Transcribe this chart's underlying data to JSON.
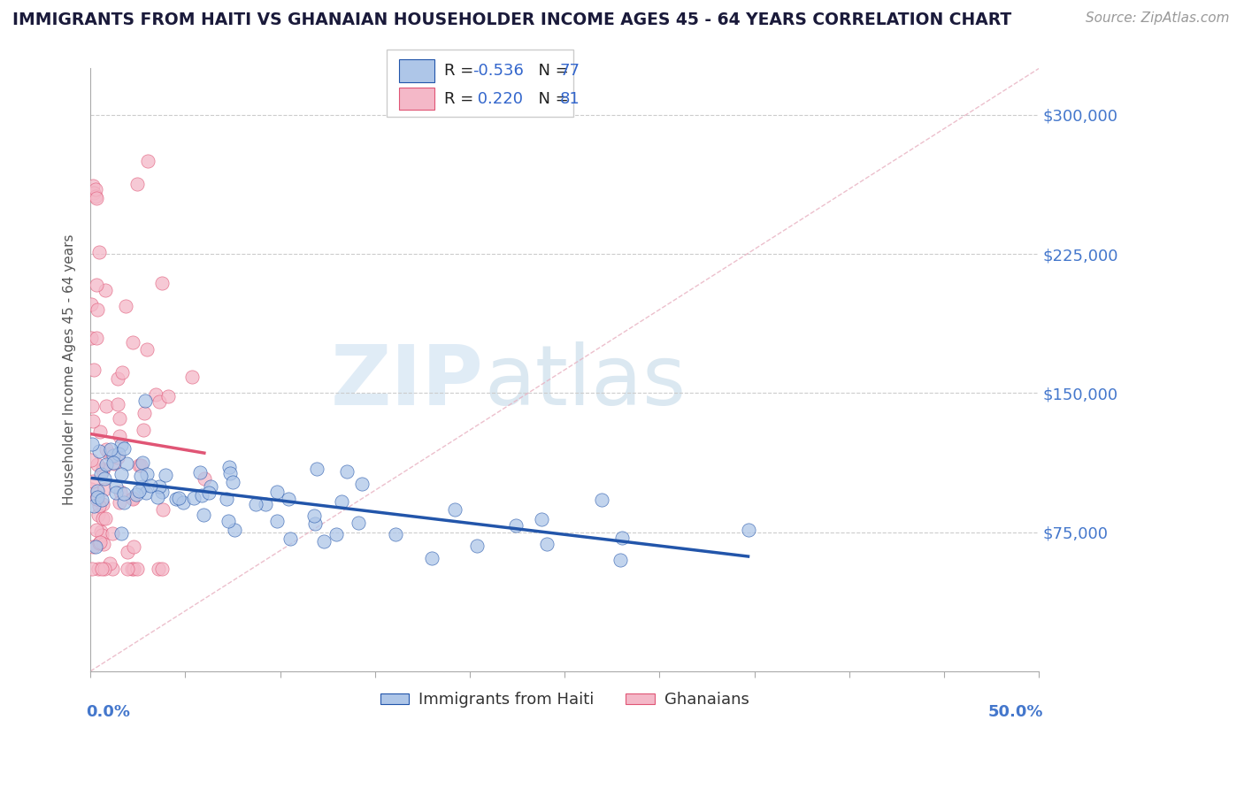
{
  "title": "IMMIGRANTS FROM HAITI VS GHANAIAN HOUSEHOLDER INCOME AGES 45 - 64 YEARS CORRELATION CHART",
  "source": "Source: ZipAtlas.com",
  "ylabel": "Householder Income Ages 45 - 64 years",
  "xlim": [
    0.0,
    50.0
  ],
  "ylim": [
    0,
    325000
  ],
  "yticks": [
    0,
    75000,
    150000,
    225000,
    300000
  ],
  "ytick_labels": [
    "",
    "$75,000",
    "$150,000",
    "$225,000",
    "$300,000"
  ],
  "haiti_color": "#aec6e8",
  "ghana_color": "#f4b8c8",
  "haiti_line_color": "#2255aa",
  "ghana_line_color": "#e05575",
  "ref_line_color": "#e8a0b0",
  "watermark_zip": "ZIP",
  "watermark_atlas": "atlas",
  "haiti_R": -0.536,
  "haiti_N": 77,
  "ghana_R": 0.22,
  "ghana_N": 81,
  "title_color": "#1a1a3a",
  "source_color": "#999999",
  "axis_label_color": "#555555",
  "right_tick_color": "#4477cc",
  "bottom_label_color": "#4477cc"
}
